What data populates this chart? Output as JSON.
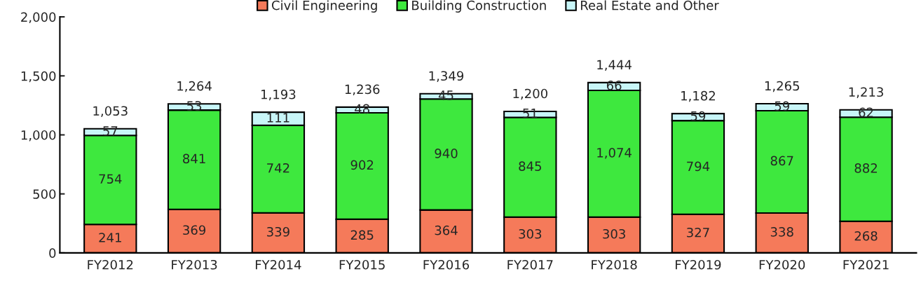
{
  "chart_data": {
    "type": "bar",
    "stacked": true,
    "categories": [
      "FY2012",
      "FY2013",
      "FY2014",
      "FY2015",
      "FY2016",
      "FY2017",
      "FY2018",
      "FY2019",
      "FY2020",
      "FY2021"
    ],
    "series": [
      {
        "name": "Civil Engineering",
        "color": "#f57a5a",
        "values": [
          241,
          369,
          339,
          285,
          364,
          303,
          303,
          327,
          338,
          268
        ],
        "value_labels": [
          "241",
          "369",
          "339",
          "285",
          "364",
          "303",
          "303",
          "327",
          "338",
          "268"
        ]
      },
      {
        "name": "Building Construction",
        "color": "#3ee83e",
        "values": [
          754,
          841,
          742,
          902,
          940,
          845,
          1074,
          794,
          867,
          882
        ],
        "value_labels": [
          "754",
          "841",
          "742",
          "902",
          "940",
          "845",
          "1,074",
          "794",
          "867",
          "882"
        ]
      },
      {
        "name": "Real Estate and Other",
        "color": "#c8f6f8",
        "values": [
          57,
          53,
          111,
          48,
          45,
          51,
          66,
          59,
          59,
          62
        ],
        "value_labels": [
          "57",
          "53",
          "111",
          "48",
          "45",
          "51",
          "66",
          "59",
          "59",
          "62"
        ]
      }
    ],
    "totals": [
      "1,053",
      "1,264",
      "1,193",
      "1,236",
      "1,349",
      "1,200",
      "1,444",
      "1,182",
      "1,265",
      "1,213"
    ],
    "ylim": [
      0,
      2000
    ],
    "yticks": [
      0,
      {
        "value": 500,
        "label": "500"
      },
      {
        "value": 1000,
        "label": "1,000"
      },
      {
        "value": 1500,
        "label": "1,500"
      },
      {
        "value": 2000,
        "label": "2,000"
      }
    ],
    "grid": false,
    "legend": "top"
  }
}
